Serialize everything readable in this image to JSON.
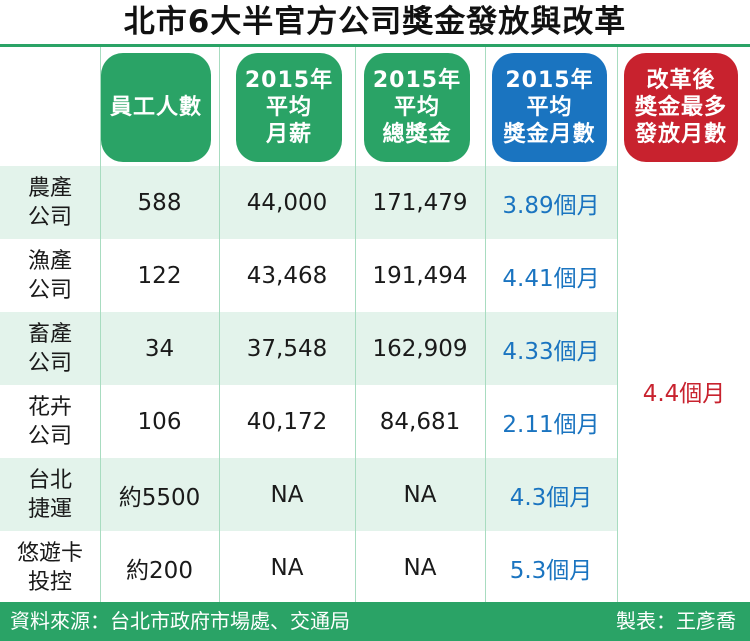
{
  "title": "北市6大半官方公司獎金發放與改革",
  "headers": {
    "employees": [
      "員工人數"
    ],
    "salary": [
      "2015年",
      "平均",
      "月薪"
    ],
    "bonus_total": [
      "2015年",
      "平均",
      "總獎金"
    ],
    "bonus_months": [
      "2015年",
      "平均",
      "獎金月數"
    ],
    "reform": [
      "改革後",
      "獎金最多",
      "發放月數"
    ]
  },
  "rows": [
    {
      "company": [
        "農產",
        "公司"
      ],
      "employees": "588",
      "salary": "44,000",
      "bonus_total": "171,479",
      "bonus_months": "3.89個月"
    },
    {
      "company": [
        "漁產",
        "公司"
      ],
      "employees": "122",
      "salary": "43,468",
      "bonus_total": "191,494",
      "bonus_months": "4.41個月"
    },
    {
      "company": [
        "畜產",
        "公司"
      ],
      "employees": "34",
      "salary": "37,548",
      "bonus_total": "162,909",
      "bonus_months": "4.33個月"
    },
    {
      "company": [
        "花卉",
        "公司"
      ],
      "employees": "106",
      "salary": "40,172",
      "bonus_total": "84,681",
      "bonus_months": "2.11個月"
    },
    {
      "company": [
        "台北",
        "捷運"
      ],
      "employees": "約5500",
      "salary": "NA",
      "bonus_total": "NA",
      "bonus_months": "4.3個月"
    },
    {
      "company": [
        "悠遊卡",
        "投控"
      ],
      "employees": "約200",
      "salary": "NA",
      "bonus_total": "NA",
      "bonus_months": "5.3個月"
    }
  ],
  "reform_value": "4.4個月",
  "footer": {
    "source": "資料來源：台北市政府市場處、交通局",
    "maker": "製表：王彥喬"
  },
  "colors": {
    "green": "#2aa366",
    "blue": "#1a74c0",
    "red": "#c8222e",
    "row_shade": "#e3f3eb"
  }
}
